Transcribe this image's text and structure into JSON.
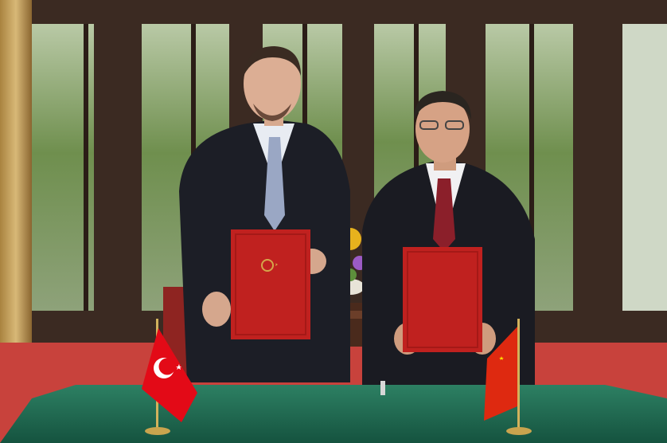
{
  "scene": {
    "description_colors": {
      "wall": "#3b2a22",
      "window_green": "#6f8f4e",
      "carpet": "#c8423c",
      "table": "#1f6b52",
      "folder": "#c0211f",
      "suit": "#1c1e26",
      "flag_turkey": "#e30a17",
      "flag_china": "#de2910"
    }
  }
}
